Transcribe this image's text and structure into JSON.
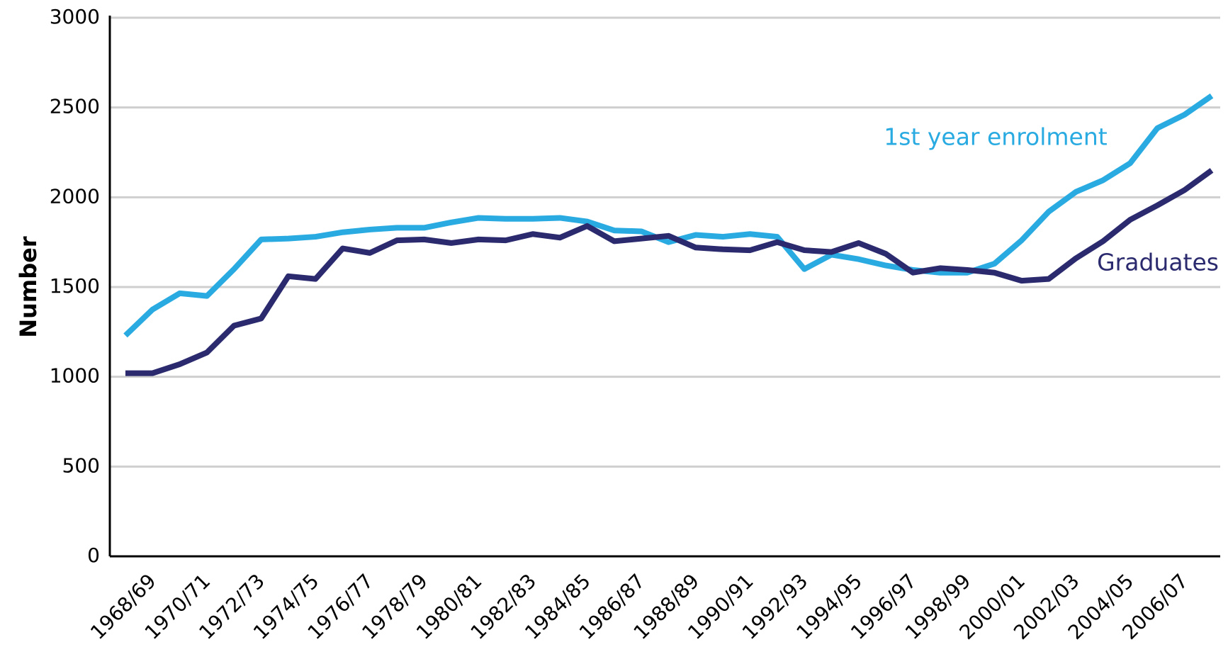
{
  "chart_data": {
    "type": "line",
    "y_label": "Number",
    "categories": [
      "1968/69",
      null,
      "1970/71",
      null,
      "1972/73",
      null,
      "1974/75",
      null,
      "1976/77",
      null,
      "1978/79",
      null,
      "1980/81",
      null,
      "1982/83",
      null,
      "1984/85",
      null,
      "1986/87",
      null,
      "1988/89",
      null,
      "1990/91",
      null,
      "1992/93",
      null,
      "1994/95",
      null,
      "1996/97",
      null,
      "1998/99",
      null,
      "2000/01",
      null,
      "2002/03",
      null,
      "2004/05",
      null,
      "2006/07",
      null,
      null
    ],
    "series": [
      {
        "name": "1st year enrolment",
        "color": "#29abe2",
        "values": [
          1230,
          1375,
          1465,
          1450,
          1600,
          1765,
          1770,
          1780,
          1805,
          1820,
          1830,
          1830,
          1860,
          1885,
          1880,
          1880,
          1885,
          1865,
          1815,
          1810,
          1750,
          1790,
          1780,
          1795,
          1780,
          1600,
          1680,
          1655,
          1620,
          1595,
          1580,
          1580,
          1630,
          1760,
          1920,
          2030,
          2095,
          2190,
          2385,
          2460,
          2565
        ]
      },
      {
        "name": "Graduates",
        "color": "#2b2a6e",
        "values": [
          1020,
          1020,
          1070,
          1135,
          1285,
          1325,
          1560,
          1545,
          1715,
          1690,
          1760,
          1765,
          1745,
          1765,
          1760,
          1795,
          1775,
          1840,
          1755,
          1770,
          1785,
          1720,
          1710,
          1705,
          1750,
          1705,
          1695,
          1745,
          1685,
          1580,
          1605,
          1595,
          1580,
          1535,
          1545,
          1660,
          1755,
          1875,
          1955,
          2040,
          2150
        ]
      }
    ],
    "ylim": [
      0,
      3000
    ],
    "yticks": [
      0,
      500,
      1000,
      1500,
      2000,
      2500,
      3000
    ],
    "grid": true
  }
}
